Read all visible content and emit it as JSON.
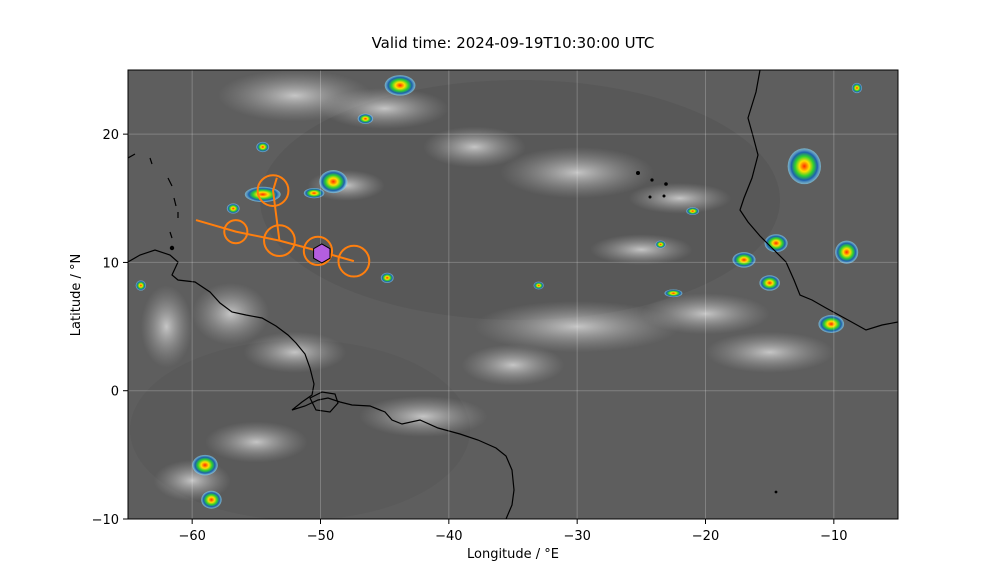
{
  "title": "Valid time: 2024-09-19T10:30:00 UTC",
  "x_axis": {
    "label": "Longitude / °E",
    "range": [
      -65,
      -5
    ],
    "ticks": [
      -60,
      -50,
      -40,
      -30,
      -20,
      -10
    ],
    "tick_labels": [
      "−60",
      "−50",
      "−40",
      "−30",
      "−20",
      "−10"
    ]
  },
  "y_axis": {
    "label": "Latitude / °N",
    "range": [
      -10,
      25
    ],
    "ticks": [
      -10,
      0,
      10,
      20
    ],
    "tick_labels": [
      "−10",
      "0",
      "10",
      "20"
    ]
  },
  "grid": true,
  "background_imagery": "infrared satellite, grayscale with color-enhanced cold cloud tops",
  "colors": {
    "track": "#ff7f0e",
    "marker": "#b45ee0",
    "coast": "#000000",
    "ocean": "#5a5a5a"
  },
  "track": {
    "points": [
      {
        "lon": -59.7,
        "lat": 13.3
      },
      {
        "lon": -56.6,
        "lat": 12.4
      },
      {
        "lon": -53.2,
        "lat": 11.7
      },
      {
        "lon": -50.2,
        "lat": 10.9
      },
      {
        "lon": -47.4,
        "lat": 10.1
      }
    ],
    "branch": [
      {
        "lon": -53.2,
        "lat": 11.7
      },
      {
        "lon": -53.7,
        "lat": 15.6
      },
      {
        "lon": -53.4,
        "lat": 16.6
      }
    ],
    "circles": [
      {
        "lon": -56.6,
        "lat": 12.4,
        "r_deg": 0.9
      },
      {
        "lon": -53.7,
        "lat": 15.6,
        "r_deg": 1.2
      },
      {
        "lon": -53.2,
        "lat": 11.7,
        "r_deg": 1.2
      },
      {
        "lon": -50.2,
        "lat": 10.9,
        "r_deg": 1.1
      },
      {
        "lon": -47.4,
        "lat": 10.1,
        "r_deg": 1.2
      }
    ],
    "current_position": {
      "lon": -49.9,
      "lat": 10.7
    }
  }
}
